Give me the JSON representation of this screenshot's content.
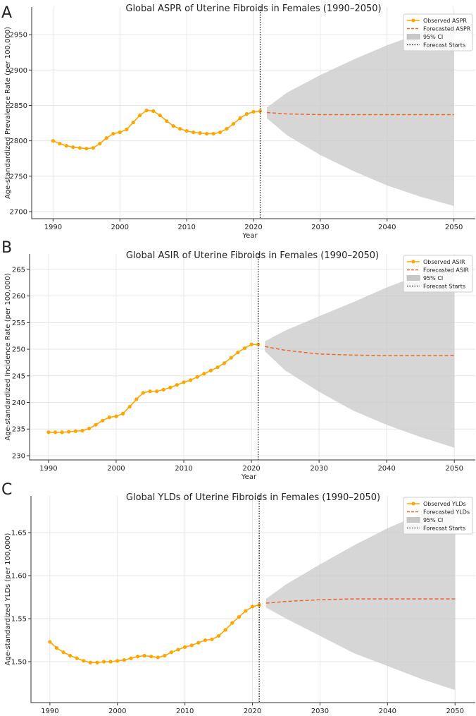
{
  "chart_data": [
    {
      "type": "line",
      "panel_label": "A",
      "title": "Global ASPR of Uterine Fibroids in Females (1990–2050)",
      "xlabel": "Year",
      "ylabel": "Age-standardized Prevalence Rate (per 100,000)",
      "xlim": [
        1986.8,
        2053.2
      ],
      "ylim": [
        2690,
        2989
      ],
      "xticks": [
        1990,
        2000,
        2010,
        2020,
        2030,
        2040,
        2050
      ],
      "yticks": [
        2700,
        2750,
        2800,
        2850,
        2900,
        2950
      ],
      "ydecimals": 0,
      "grid": true,
      "legend_position": "top-right",
      "forecast_start": 2021,
      "legend": [
        "Observed ASPR",
        "Forecasted ASPR",
        "95% CI",
        "Forecast Starts"
      ],
      "observed": {
        "start_year": 1990,
        "values": [
          2800,
          2796,
          2793,
          2791,
          2790,
          2789,
          2790,
          2796,
          2804,
          2810,
          2812,
          2816,
          2826,
          2836,
          2843,
          2842,
          2836,
          2828,
          2821,
          2817,
          2814,
          2812,
          2811,
          2810,
          2810,
          2812,
          2817,
          2824,
          2832,
          2838,
          2841,
          2842
        ]
      },
      "forecast": {
        "years": [
          2022,
          2025,
          2030,
          2035,
          2040,
          2045,
          2050
        ],
        "values": [
          2840,
          2838,
          2837,
          2837,
          2837,
          2837,
          2837
        ],
        "ci_lower": [
          2832,
          2808,
          2780,
          2757,
          2737,
          2721,
          2708
        ],
        "ci_upper": [
          2847,
          2868,
          2893,
          2915,
          2935,
          2952,
          2966
        ]
      }
    },
    {
      "type": "line",
      "panel_label": "B",
      "title": "Global ASIR of Uterine Fibroids in Females (1990–2050)",
      "xlabel": "Year",
      "ylabel": "Age-standardized Incidence Rate (per 100,000)",
      "xlim": [
        1987.2,
        2053.1
      ],
      "ylim": [
        229.2,
        267.9
      ],
      "xticks": [
        1990,
        2000,
        2010,
        2020,
        2030,
        2040,
        2050
      ],
      "yticks": [
        230,
        235,
        240,
        245,
        250,
        255,
        260,
        265
      ],
      "ydecimals": 0,
      "grid": true,
      "legend_position": "top-right",
      "forecast_start": 2021,
      "legend": [
        "Observed ASIR",
        "Forecasted ASIR",
        "95% CI",
        "Forecast Starts"
      ],
      "observed": {
        "start_year": 1990,
        "values": [
          234.4,
          234.4,
          234.4,
          234.5,
          234.6,
          234.7,
          235.1,
          235.8,
          236.6,
          237.2,
          237.4,
          237.9,
          239.2,
          240.6,
          241.8,
          242.1,
          242.1,
          242.4,
          242.8,
          243.3,
          243.8,
          244.2,
          244.8,
          245.4,
          246.0,
          246.6,
          247.4,
          248.4,
          249.4,
          250.2,
          250.9,
          250.9
        ]
      },
      "forecast": {
        "years": [
          2022,
          2025,
          2030,
          2035,
          2040,
          2045,
          2050
        ],
        "values": [
          250.5,
          249.8,
          249.1,
          248.9,
          248.8,
          248.8,
          248.8
        ],
        "ci_lower": [
          249.6,
          246,
          242,
          238.5,
          235.8,
          233.5,
          231.5
        ],
        "ci_upper": [
          251.5,
          253.5,
          256.2,
          258.8,
          261.6,
          264,
          266
        ]
      }
    },
    {
      "type": "line",
      "panel_label": "C",
      "title": "Global YLDs of Uterine Fibroids in Females (1990–2050)",
      "xlabel": "Year",
      "ylabel": "Age-standardized YLDs (per 100,000)",
      "xlim": [
        1987.2,
        2053
      ],
      "ylim": [
        1.4525,
        1.6926
      ],
      "xticks": [
        1990,
        2000,
        2010,
        2020,
        2030,
        2040,
        2050
      ],
      "yticks": [
        1.5,
        1.55,
        1.6,
        1.65
      ],
      "ydecimals": 2,
      "grid": true,
      "legend_position": "top-right",
      "forecast_start": 2021,
      "legend": [
        "Observed YLDs",
        "Forecasted YLDs",
        "95% CI",
        "Forecast Starts"
      ],
      "observed": {
        "start_year": 1990,
        "values": [
          1.523,
          1.516,
          1.511,
          1.507,
          1.504,
          1.501,
          1.499,
          1.499,
          1.5,
          1.5,
          1.501,
          1.502,
          1.504,
          1.506,
          1.507,
          1.506,
          1.505,
          1.507,
          1.511,
          1.514,
          1.517,
          1.519,
          1.522,
          1.525,
          1.526,
          1.53,
          1.537,
          1.545,
          1.552,
          1.559,
          1.564,
          1.566
        ]
      },
      "forecast": {
        "years": [
          2022,
          2025,
          2030,
          2035,
          2040,
          2045,
          2050
        ],
        "values": [
          1.568,
          1.57,
          1.572,
          1.573,
          1.573,
          1.573,
          1.573
        ],
        "ci_lower": [
          1.563,
          1.55,
          1.53,
          1.51,
          1.495,
          1.48,
          1.467
        ],
        "ci_upper": [
          1.573,
          1.59,
          1.613,
          1.635,
          1.655,
          1.672,
          1.68
        ]
      }
    }
  ],
  "colors": {
    "observed": "#ffa500",
    "forecast": "#f0642a",
    "ci": "#c8c8c8",
    "forecast_line": "#000000",
    "grid": "#e6e6e6"
  }
}
